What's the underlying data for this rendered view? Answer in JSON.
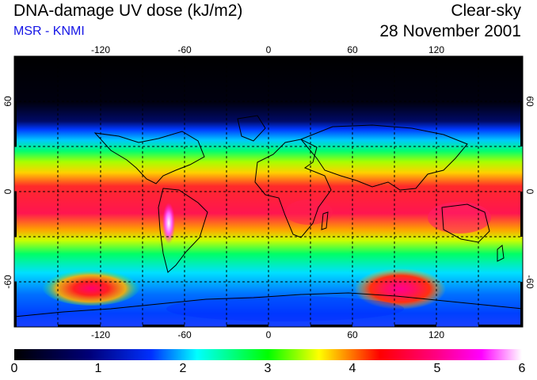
{
  "header": {
    "title": "DNA-damage UV dose (kJ/m2)",
    "subtitle": "MSR - KNMI",
    "sky_condition": "Clear-sky",
    "date": "28 November 2001"
  },
  "map": {
    "lon_ticks": [
      "-120",
      "-60",
      "0",
      "60",
      "120"
    ],
    "lat_ticks": [
      "60",
      "0",
      "-60"
    ],
    "gridlines": "dashed",
    "gridline_color": "#000000"
  },
  "colorbar": {
    "labels": [
      "0",
      "1",
      "2",
      "3",
      "4",
      "5",
      "6"
    ],
    "colors": [
      "#000000",
      "#0000ff",
      "#00ffff",
      "#00ff00",
      "#ffff00",
      "#ff0000",
      "#ff00ff",
      "#ffffff"
    ]
  }
}
